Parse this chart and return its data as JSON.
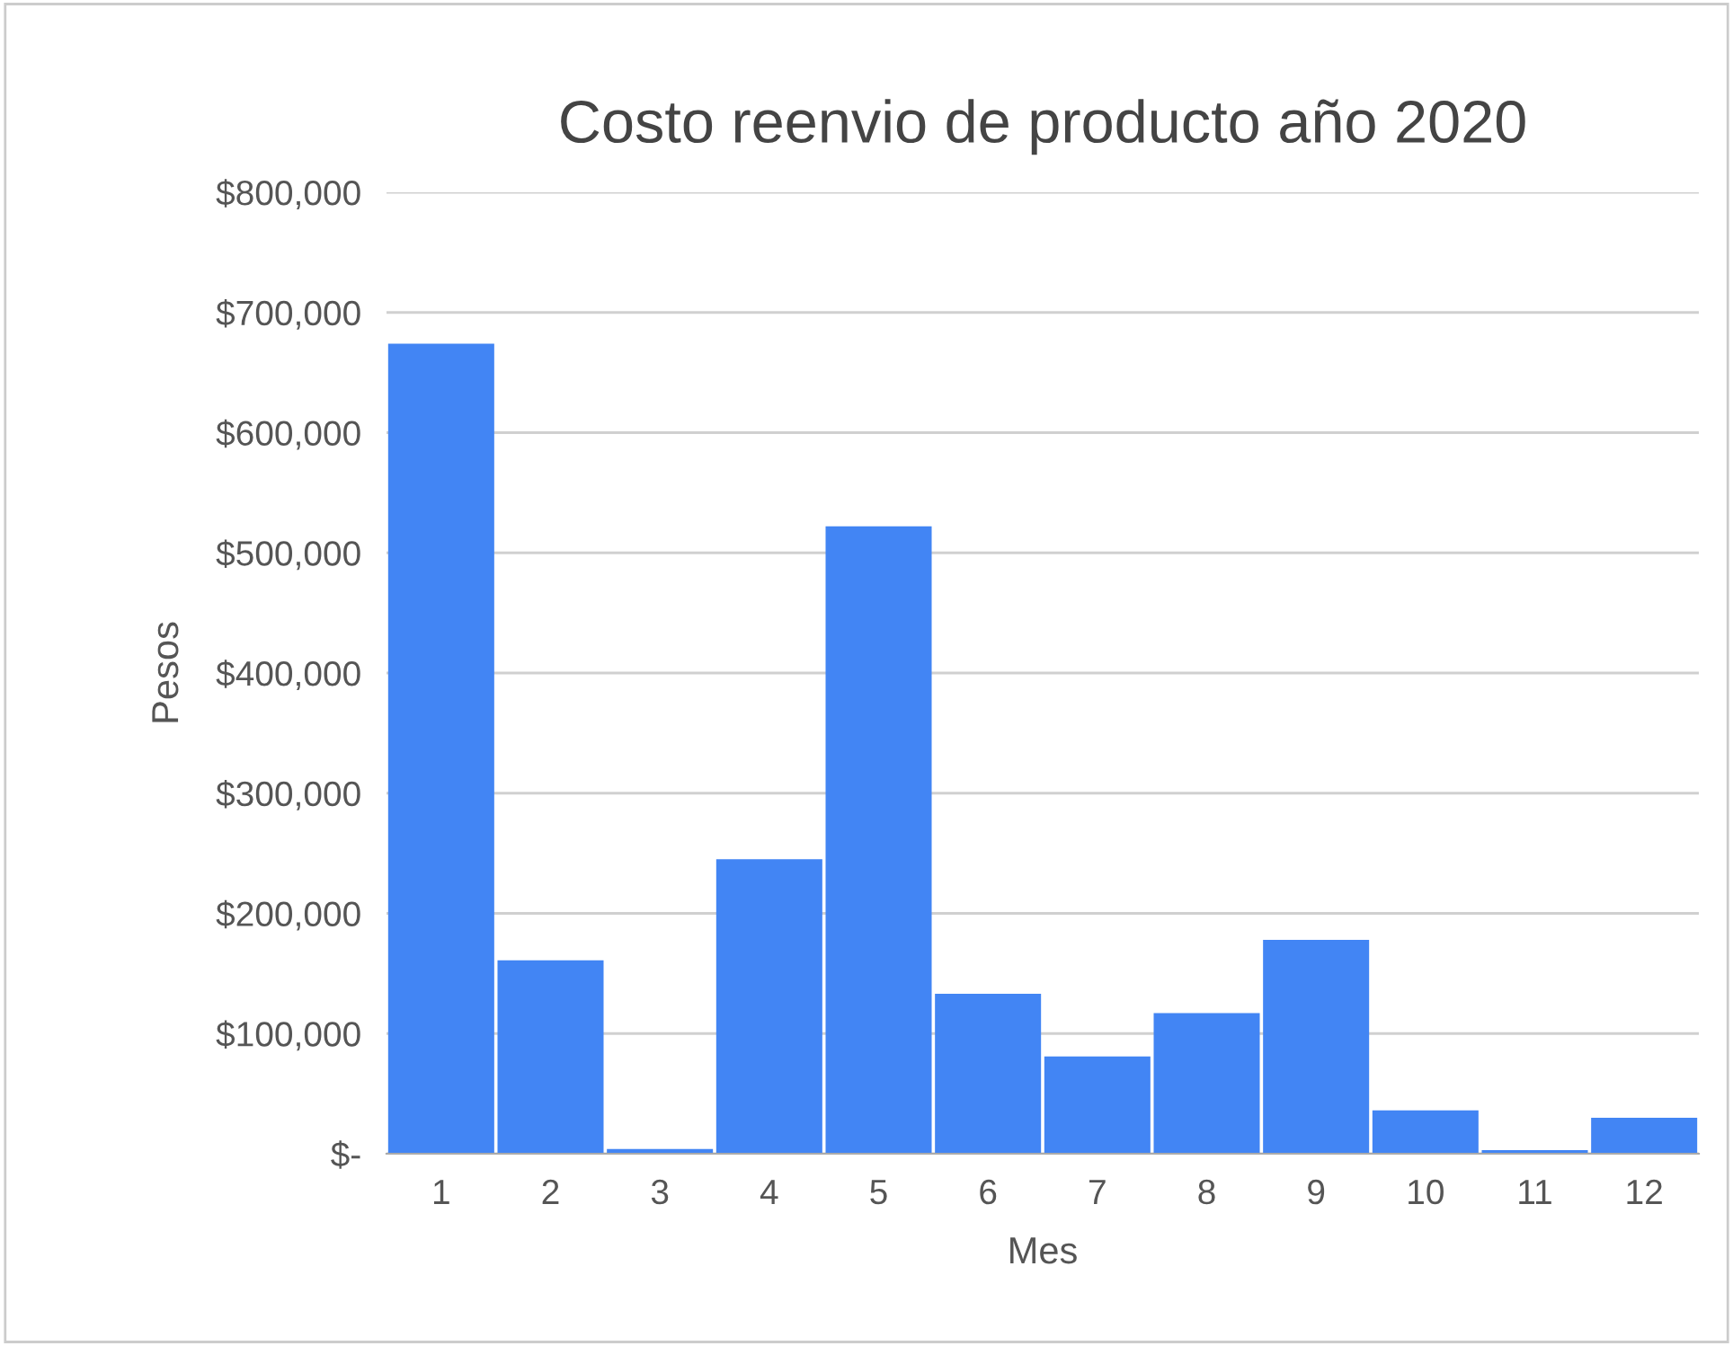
{
  "chart_data": {
    "type": "bar",
    "title": "Costo reenvio de producto año 2020",
    "xlabel": "Mes",
    "ylabel": "Pesos",
    "categories": [
      "1",
      "2",
      "3",
      "4",
      "5",
      "6",
      "7",
      "8",
      "9",
      "10",
      "11",
      "12"
    ],
    "values": [
      674000,
      161000,
      4000,
      245000,
      522000,
      133000,
      81000,
      117000,
      178000,
      36000,
      3000,
      30000
    ],
    "color": "#4285f4",
    "ylim": [
      0,
      800000
    ],
    "yticks": [
      {
        "value": 0,
        "label": "$-"
      },
      {
        "value": 100000,
        "label": "$100,000"
      },
      {
        "value": 200000,
        "label": "$200,000"
      },
      {
        "value": 300000,
        "label": "$300,000"
      },
      {
        "value": 400000,
        "label": "$400,000"
      },
      {
        "value": 500000,
        "label": "$500,000"
      },
      {
        "value": 600000,
        "label": "$600,000"
      },
      {
        "value": 700000,
        "label": "$700,000"
      },
      {
        "value": 800000,
        "label": "$800,000"
      }
    ],
    "grid": "y"
  }
}
